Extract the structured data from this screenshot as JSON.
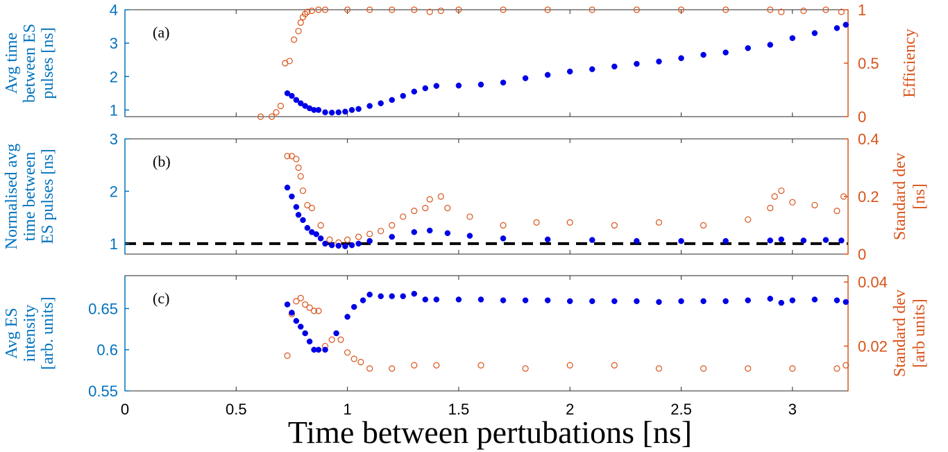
{
  "chart_data": {
    "type": "scatter",
    "xlabel": "Time between pertubations [ns]",
    "xlim": [
      0,
      3.25
    ],
    "xticks": [
      0,
      0.5,
      1,
      1.5,
      2,
      2.5,
      3
    ],
    "xtick_labels": [
      "0",
      "0.5",
      "1",
      "1.5",
      "2",
      "2.5",
      "3"
    ],
    "colors": {
      "left": "#0000e6",
      "left_axis": "#0072bd",
      "right": "#d95319",
      "ref": "#000000"
    },
    "panels": [
      {
        "label": "(a)",
        "left": {
          "name": "Avg time between ES pulses",
          "ylabel_lines": [
            "Avg time",
            "between ES",
            "pulses [ns]"
          ],
          "ylim": [
            0.8,
            4.0
          ],
          "ticks": [
            1,
            2,
            3,
            4
          ],
          "tick_labels": [
            "1",
            "2",
            "3",
            "4"
          ],
          "x": [
            0.73,
            0.75,
            0.77,
            0.79,
            0.81,
            0.83,
            0.85,
            0.87,
            0.9,
            0.93,
            0.96,
            0.99,
            1.02,
            1.05,
            1.1,
            1.15,
            1.2,
            1.25,
            1.3,
            1.35,
            1.4,
            1.5,
            1.6,
            1.7,
            1.8,
            1.9,
            2.0,
            2.1,
            2.2,
            2.3,
            2.4,
            2.5,
            2.6,
            2.7,
            2.8,
            2.9,
            3.0,
            3.1,
            3.2,
            3.24
          ],
          "y": [
            1.5,
            1.42,
            1.3,
            1.2,
            1.12,
            1.05,
            1.0,
            1.0,
            0.93,
            0.92,
            0.93,
            0.95,
            1.0,
            1.03,
            1.12,
            1.2,
            1.3,
            1.42,
            1.55,
            1.65,
            1.72,
            1.73,
            1.76,
            1.82,
            1.95,
            2.05,
            2.15,
            2.22,
            2.3,
            2.38,
            2.45,
            2.55,
            2.65,
            2.72,
            2.85,
            2.95,
            3.15,
            3.3,
            3.45,
            3.55
          ]
        },
        "right": {
          "name": "Efficiency",
          "ylabel_lines": [
            "Efficiency"
          ],
          "ylim": [
            0,
            1.0
          ],
          "ticks": [
            0,
            0.5,
            1
          ],
          "tick_labels": [
            "0",
            "0.5",
            "1"
          ],
          "x": [
            0.61,
            0.66,
            0.68,
            0.7,
            0.72,
            0.74,
            0.76,
            0.78,
            0.79,
            0.8,
            0.81,
            0.82,
            0.84,
            0.87,
            0.9,
            1.0,
            1.1,
            1.2,
            1.3,
            1.37,
            1.42,
            1.5,
            1.7,
            1.9,
            2.1,
            2.3,
            2.5,
            2.7,
            2.9,
            2.95,
            3.05,
            3.15,
            3.22
          ],
          "y": [
            0.0,
            0.0,
            0.04,
            0.1,
            0.5,
            0.52,
            0.72,
            0.8,
            0.88,
            0.93,
            0.96,
            0.98,
            0.99,
            1.0,
            1.0,
            1.0,
            1.0,
            1.0,
            1.0,
            0.98,
            0.99,
            1.0,
            1.0,
            1.0,
            1.0,
            1.0,
            1.0,
            1.0,
            1.0,
            0.98,
            0.99,
            1.0,
            0.98
          ]
        }
      },
      {
        "label": "(b)",
        "reference_y": 1.0,
        "left": {
          "name": "Normalised avg time between ES pulses",
          "ylabel_lines": [
            "Normalised avg",
            "time between",
            "ES pulses [ns]"
          ],
          "ylim": [
            0.8,
            3.0
          ],
          "ticks": [
            1,
            2,
            3
          ],
          "tick_labels": [
            "1",
            "2",
            "3"
          ],
          "x": [
            0.73,
            0.75,
            0.77,
            0.78,
            0.8,
            0.82,
            0.84,
            0.86,
            0.88,
            0.9,
            0.93,
            0.96,
            0.99,
            1.02,
            1.05,
            1.1,
            1.2,
            1.3,
            1.37,
            1.45,
            1.55,
            1.7,
            1.9,
            2.1,
            2.3,
            2.5,
            2.7,
            2.9,
            2.95,
            3.05,
            3.15,
            3.22
          ],
          "y": [
            2.07,
            1.9,
            1.7,
            1.55,
            1.45,
            1.3,
            1.22,
            1.18,
            1.1,
            1.0,
            0.97,
            0.96,
            0.95,
            0.97,
            1.0,
            1.05,
            1.13,
            1.22,
            1.25,
            1.2,
            1.15,
            1.1,
            1.08,
            1.07,
            1.05,
            1.05,
            1.05,
            1.06,
            1.08,
            1.06,
            1.07,
            1.06
          ]
        },
        "right": {
          "name": "Standard dev [ns]",
          "ylabel_lines": [
            "Standard dev",
            "[ns]"
          ],
          "ylim": [
            0,
            0.4
          ],
          "ticks": [
            0,
            0.2,
            0.4
          ],
          "tick_labels": [
            "0",
            "0.2",
            "0.4"
          ],
          "x": [
            0.73,
            0.75,
            0.77,
            0.78,
            0.79,
            0.8,
            0.82,
            0.84,
            0.88,
            0.92,
            0.96,
            1.0,
            1.05,
            1.1,
            1.15,
            1.2,
            1.25,
            1.3,
            1.35,
            1.37,
            1.42,
            1.45,
            1.55,
            1.7,
            1.85,
            2.0,
            2.2,
            2.4,
            2.6,
            2.8,
            2.9,
            2.92,
            2.95,
            3.0,
            3.1,
            3.2,
            3.23
          ],
          "y": [
            0.34,
            0.34,
            0.33,
            0.3,
            0.27,
            0.22,
            0.17,
            0.16,
            0.1,
            0.05,
            0.04,
            0.05,
            0.06,
            0.07,
            0.08,
            0.1,
            0.13,
            0.15,
            0.16,
            0.19,
            0.2,
            0.16,
            0.13,
            0.1,
            0.11,
            0.11,
            0.1,
            0.11,
            0.1,
            0.12,
            0.16,
            0.2,
            0.22,
            0.18,
            0.17,
            0.15,
            0.2
          ]
        }
      },
      {
        "label": "(c)",
        "left": {
          "name": "Avg ES intensity",
          "ylabel_lines": [
            "Avg ES",
            "intensity",
            "[arb. units]"
          ],
          "ylim": [
            0.55,
            0.69
          ],
          "ticks": [
            0.55,
            0.6,
            0.65
          ],
          "tick_labels": [
            "0.55",
            "0.6",
            "0.65"
          ],
          "x": [
            0.73,
            0.75,
            0.77,
            0.79,
            0.81,
            0.83,
            0.85,
            0.87,
            0.9,
            0.95,
            1.0,
            1.03,
            1.07,
            1.1,
            1.15,
            1.2,
            1.25,
            1.3,
            1.35,
            1.4,
            1.5,
            1.6,
            1.7,
            1.8,
            1.9,
            2.0,
            2.1,
            2.2,
            2.3,
            2.4,
            2.5,
            2.6,
            2.7,
            2.8,
            2.9,
            2.95,
            3.0,
            3.1,
            3.2,
            3.24
          ],
          "y": [
            0.655,
            0.645,
            0.635,
            0.628,
            0.62,
            0.61,
            0.6,
            0.6,
            0.6,
            0.62,
            0.64,
            0.652,
            0.66,
            0.667,
            0.665,
            0.665,
            0.665,
            0.668,
            0.661,
            0.661,
            0.661,
            0.661,
            0.66,
            0.66,
            0.66,
            0.659,
            0.659,
            0.659,
            0.659,
            0.658,
            0.659,
            0.659,
            0.659,
            0.66,
            0.662,
            0.657,
            0.66,
            0.661,
            0.66,
            0.658
          ]
        },
        "right": {
          "name": "Standard dev [arb units]",
          "ylabel_lines": [
            "Standard dev",
            "[arb units]"
          ],
          "ylim": [
            0.006,
            0.042
          ],
          "ticks": [
            0.02,
            0.04
          ],
          "tick_labels": [
            "0.02",
            "0.04"
          ],
          "x": [
            0.73,
            0.75,
            0.77,
            0.79,
            0.81,
            0.83,
            0.85,
            0.87,
            0.9,
            0.93,
            0.97,
            1.0,
            1.03,
            1.06,
            1.1,
            1.2,
            1.3,
            1.4,
            1.6,
            1.8,
            2.0,
            2.2,
            2.4,
            2.6,
            2.8,
            3.0,
            3.2,
            3.24
          ],
          "y": [
            0.017,
            0.03,
            0.034,
            0.035,
            0.033,
            0.032,
            0.031,
            0.031,
            0.02,
            0.022,
            0.022,
            0.018,
            0.016,
            0.015,
            0.013,
            0.013,
            0.014,
            0.014,
            0.014,
            0.013,
            0.014,
            0.014,
            0.013,
            0.013,
            0.013,
            0.013,
            0.013,
            0.014
          ]
        }
      }
    ]
  }
}
